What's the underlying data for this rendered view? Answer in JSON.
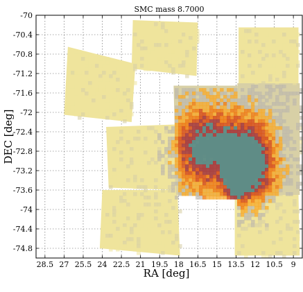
{
  "chart_data": {
    "type": "heatmap",
    "title": "SMC mass  8.7000",
    "xlabel": "RA [deg]",
    "ylabel": "DEC [deg]",
    "xlim": [
      29.2,
      8.3
    ],
    "ylim": [
      -75.0,
      -70.0
    ],
    "x_ticks": [
      28.5,
      27,
      25.5,
      24,
      22.5,
      21,
      19.5,
      18,
      16.5,
      15,
      13.5,
      12,
      10.5,
      9
    ],
    "x_tick_labels": [
      "28.5",
      "27",
      "25.5",
      "24",
      "22.5",
      "21",
      "19.5",
      "18",
      "16.5",
      "15",
      "13.5",
      "12",
      "10.5",
      "9"
    ],
    "y_ticks": [
      -70,
      -70.4,
      -70.8,
      -71.2,
      -71.6,
      -72,
      -72.4,
      -72.8,
      -73.2,
      -73.6,
      -74,
      -74.4,
      -74.8
    ],
    "y_tick_labels": [
      "-70",
      "-70.4",
      "-70.8",
      "-71.2",
      "-71.6",
      "-72",
      "-72.4",
      "-72.8",
      "-73.2",
      "-73.6",
      "-74",
      "-74.4",
      "-74.8"
    ],
    "grid": true,
    "tiles": [
      {
        "corners": [
          [
            21.6,
            -70.1
          ],
          [
            16.5,
            -70.15
          ],
          [
            16.6,
            -71.25
          ],
          [
            21.7,
            -71.1
          ]
        ],
        "level": 0.1
      },
      {
        "corners": [
          [
            13.3,
            -70.25
          ],
          [
            8.6,
            -70.25
          ],
          [
            8.6,
            -71.4
          ],
          [
            13.3,
            -71.4
          ]
        ],
        "level": 0.15
      },
      {
        "corners": [
          [
            26.7,
            -70.65
          ],
          [
            21.4,
            -71.0
          ],
          [
            21.7,
            -72.2
          ],
          [
            27.0,
            -72.05
          ]
        ],
        "level": 0.1
      },
      {
        "corners": [
          [
            23.7,
            -72.3
          ],
          [
            18.3,
            -72.25
          ],
          [
            18.1,
            -73.6
          ],
          [
            23.5,
            -73.55
          ]
        ],
        "level": 0.15
      },
      {
        "corners": [
          [
            24.0,
            -73.6
          ],
          [
            18.1,
            -73.6
          ],
          [
            17.9,
            -74.95
          ],
          [
            24.2,
            -74.8
          ]
        ],
        "level": 0.15
      },
      {
        "corners": [
          [
            18.4,
            -71.45
          ],
          [
            13.4,
            -71.45
          ],
          [
            13.4,
            -73.75
          ],
          [
            18.2,
            -73.7
          ]
        ],
        "level": 0.6
      },
      {
        "corners": [
          [
            13.4,
            -71.4
          ],
          [
            8.5,
            -71.4
          ],
          [
            8.5,
            -73.7
          ],
          [
            13.4,
            -73.7
          ]
        ],
        "level": 0.5
      },
      {
        "corners": [
          [
            13.6,
            -73.7
          ],
          [
            8.6,
            -73.7
          ],
          [
            8.5,
            -74.95
          ],
          [
            13.6,
            -74.95
          ]
        ],
        "level": 0.2
      }
    ],
    "density_peaks": [
      {
        "center": [
          16.0,
          -72.7
        ],
        "sigma": [
          1.8,
          0.55
        ],
        "level": 0.9
      },
      {
        "center": [
          12.4,
          -73.0
        ],
        "sigma": [
          1.3,
          0.6
        ],
        "level": 1.0
      },
      {
        "center": [
          13.6,
          -73.2
        ],
        "sigma": [
          0.6,
          0.35
        ],
        "level": 1.0
      }
    ],
    "colorscale": [
      "#efe49c",
      "#d8d0a6",
      "#bdb8ad",
      "#f7a828",
      "#f07a10",
      "#d8521c",
      "#a84040",
      "#5f8c86"
    ]
  }
}
